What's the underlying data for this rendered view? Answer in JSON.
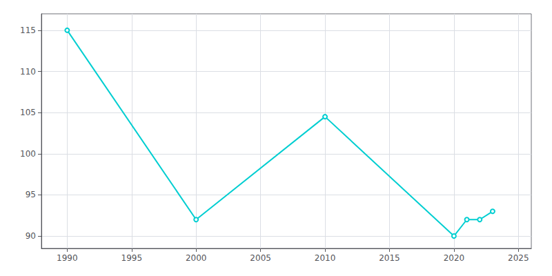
{
  "chart_data": {
    "type": "line",
    "x": [
      1990,
      2000,
      2010,
      2020,
      2021,
      2022,
      2023
    ],
    "values": [
      115,
      92,
      104.5,
      90,
      92,
      92,
      93
    ],
    "color": "#00CED1",
    "xlim": [
      1988,
      2026
    ],
    "ylim": [
      88.5,
      117
    ],
    "xticks": [
      1990,
      1995,
      2000,
      2005,
      2010,
      2015,
      2020,
      2025
    ],
    "yticks": [
      90,
      95,
      100,
      105,
      110,
      115
    ],
    "grid": true
  }
}
